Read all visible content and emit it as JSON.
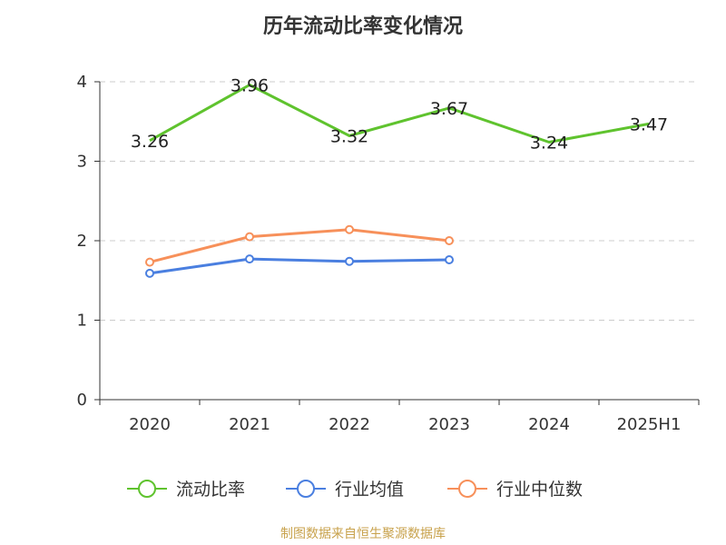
{
  "chart_data": {
    "type": "line",
    "title": "历年流动比率变化情况",
    "categories": [
      "2020",
      "2021",
      "2022",
      "2023",
      "2024",
      "2025H1"
    ],
    "y_ticks": [
      "0",
      "1",
      "2",
      "3",
      "4"
    ],
    "ylim": [
      0,
      4
    ],
    "grid": true,
    "legend_position": "bottom",
    "series": [
      {
        "name": "流动比率",
        "color": "#5fc32e",
        "values": [
          3.26,
          3.96,
          3.32,
          3.67,
          3.24,
          3.47
        ],
        "labels": [
          "3.26",
          "3.96",
          "3.32",
          "3.67",
          "3.24",
          "3.47"
        ]
      },
      {
        "name": "行业均值",
        "color": "#4a7fe0",
        "values": [
          1.59,
          1.77,
          1.74,
          1.76,
          null,
          null
        ]
      },
      {
        "name": "行业中位数",
        "color": "#f7905a",
        "values": [
          1.73,
          2.05,
          2.14,
          2.0,
          null,
          null
        ]
      }
    ]
  },
  "footer": {
    "source": "制图数据来自恒生聚源数据库"
  }
}
